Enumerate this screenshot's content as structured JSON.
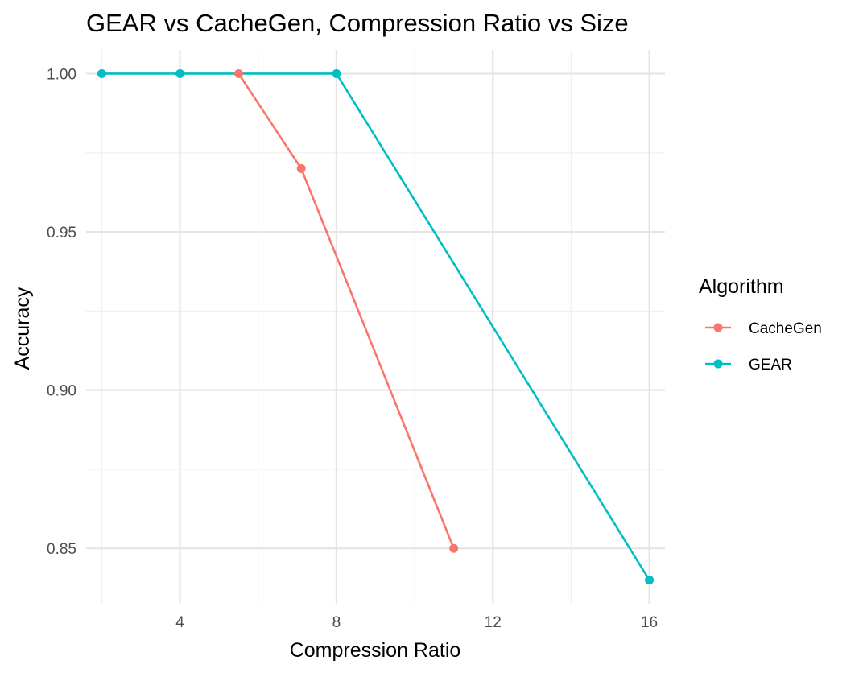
{
  "chart_data": {
    "type": "line",
    "title": "GEAR vs CacheGen, Compression Ratio vs Size",
    "xlabel": "Compression Ratio",
    "ylabel": "Accuracy",
    "xlim": [
      1.6,
      16.4
    ],
    "ylim": [
      0.8325,
      1.0075
    ],
    "xticks": [
      4,
      8,
      12,
      16
    ],
    "xtick_labels": [
      "4",
      "8",
      "12",
      "16"
    ],
    "yticks": [
      0.85,
      0.9,
      0.95,
      1.0
    ],
    "ytick_labels": [
      "0.85",
      "0.90",
      "0.95",
      "1.00"
    ],
    "xminor": [
      2,
      6,
      10,
      14
    ],
    "yminor": [
      0.875,
      0.925,
      0.975
    ],
    "grid": true,
    "legend": {
      "title": "Algorithm",
      "position": "right"
    },
    "series": [
      {
        "name": "CacheGen",
        "color": "#F8766D",
        "x": [
          5.5,
          7.1,
          11
        ],
        "y": [
          1.0,
          0.97,
          0.85
        ]
      },
      {
        "name": "GEAR",
        "color": "#00BFC4",
        "x": [
          2,
          4,
          8,
          16
        ],
        "y": [
          1.0,
          1.0,
          1.0,
          0.84
        ]
      }
    ]
  }
}
